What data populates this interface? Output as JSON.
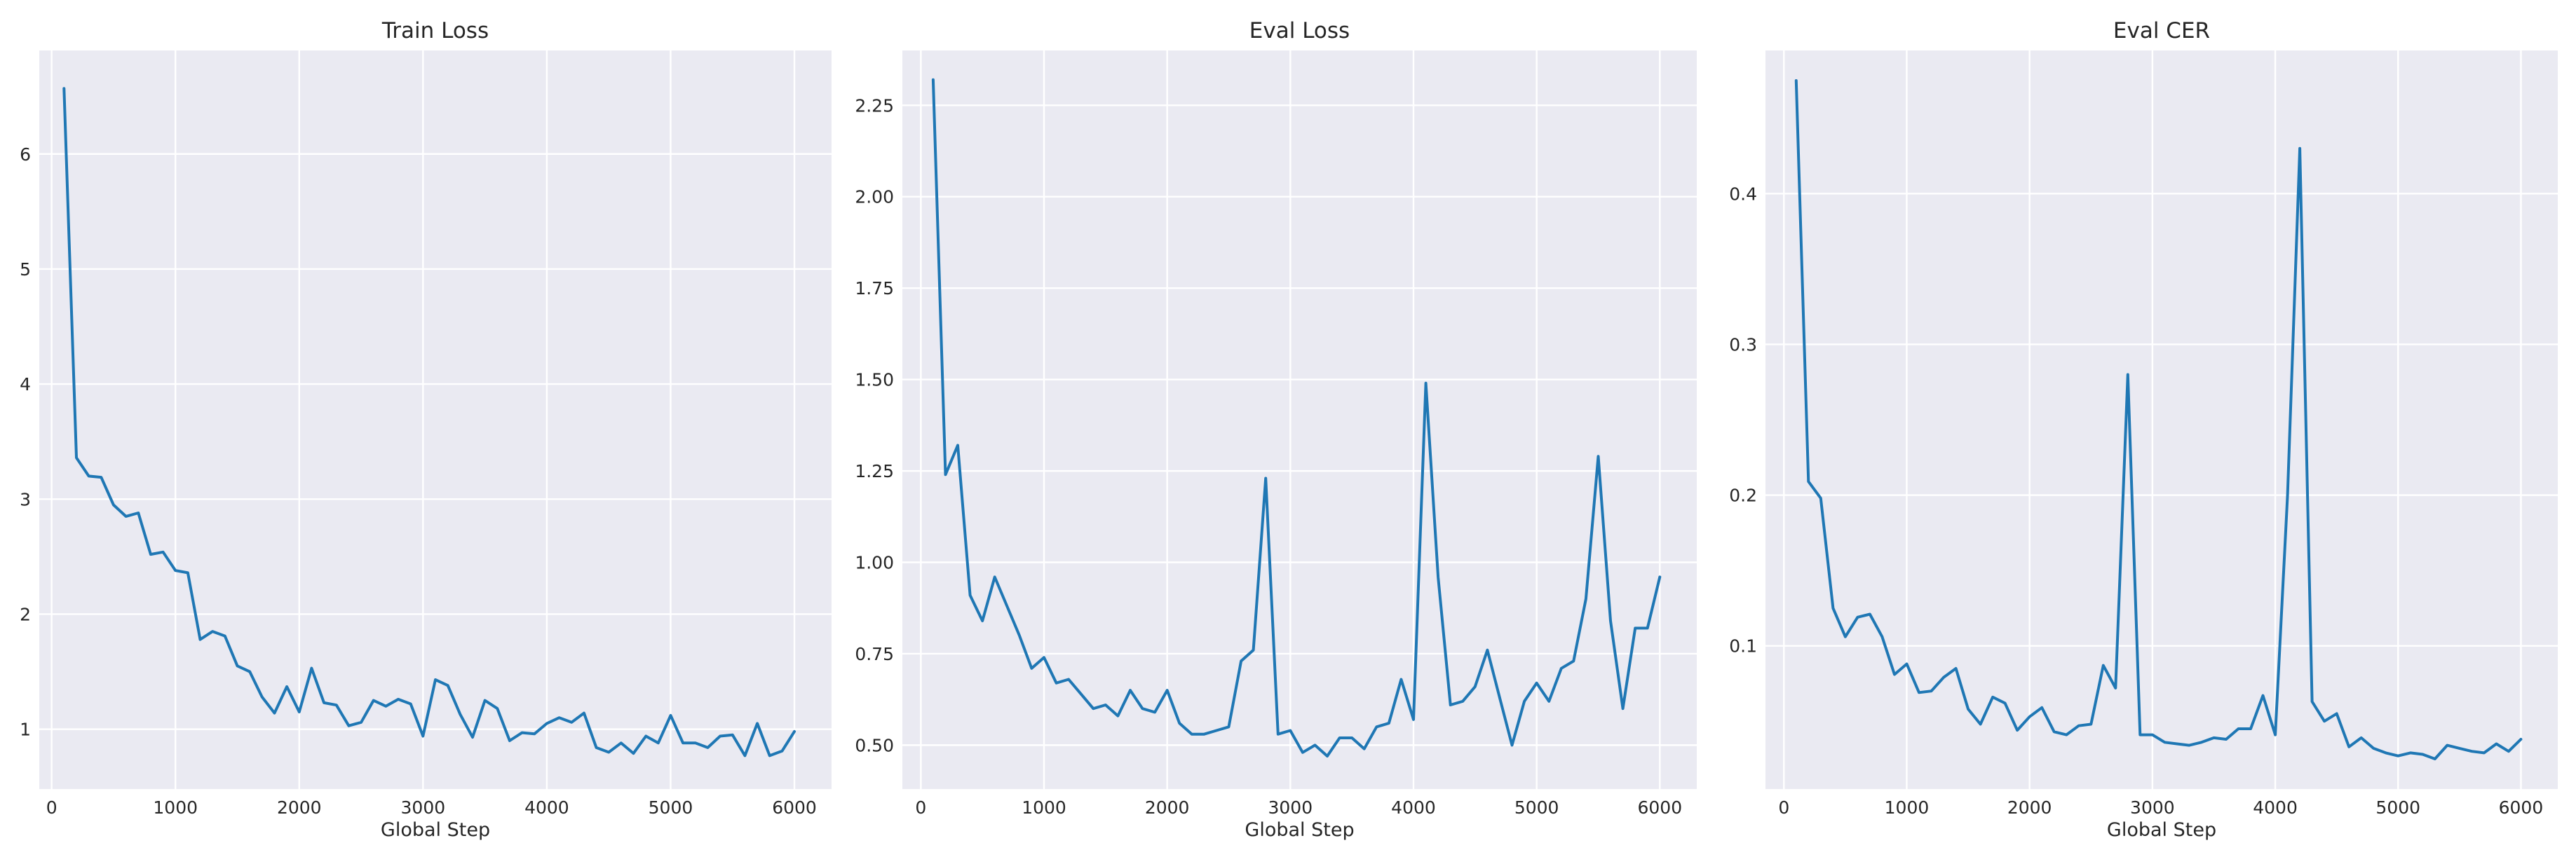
{
  "chart_data": [
    {
      "type": "line",
      "title": "Train Loss",
      "xlabel": "Global Step",
      "ylabel": "",
      "xlim": [
        -100,
        6300
      ],
      "ylim": [
        0.48,
        6.9
      ],
      "xticks": [
        0,
        1000,
        2000,
        3000,
        4000,
        5000,
        6000
      ],
      "yticks": [
        1,
        2,
        3,
        4,
        5,
        6
      ],
      "ytick_labels": [
        "1",
        "2",
        "3",
        "4",
        "5",
        "6"
      ],
      "grid": true,
      "color": "#1f77b4",
      "x": [
        100,
        200,
        300,
        400,
        500,
        600,
        700,
        800,
        900,
        1000,
        1100,
        1200,
        1300,
        1400,
        1500,
        1600,
        1700,
        1800,
        1900,
        2000,
        2100,
        2200,
        2300,
        2400,
        2500,
        2600,
        2700,
        2800,
        2900,
        3000,
        3100,
        3200,
        3300,
        3400,
        3500,
        3600,
        3700,
        3800,
        3900,
        4000,
        4100,
        4200,
        4300,
        4400,
        4500,
        4600,
        4700,
        4800,
        4900,
        5000,
        5100,
        5200,
        5300,
        5400,
        5500,
        5600,
        5700,
        5800,
        5900,
        6000
      ],
      "y": [
        6.57,
        3.36,
        3.2,
        3.19,
        2.95,
        2.85,
        2.88,
        2.52,
        2.54,
        2.38,
        2.36,
        1.78,
        1.85,
        1.81,
        1.55,
        1.5,
        1.28,
        1.14,
        1.37,
        1.15,
        1.53,
        1.23,
        1.21,
        1.03,
        1.06,
        1.25,
        1.2,
        1.26,
        1.22,
        0.94,
        1.43,
        1.38,
        1.13,
        0.93,
        1.25,
        1.18,
        0.9,
        0.97,
        0.96,
        1.05,
        1.1,
        1.06,
        1.14,
        0.84,
        0.8,
        0.88,
        0.79,
        0.94,
        0.88,
        1.12,
        0.88,
        0.88,
        0.84,
        0.94,
        0.95,
        0.77,
        1.05,
        0.77,
        0.81,
        0.98
      ]
    },
    {
      "type": "line",
      "title": "Eval Loss",
      "xlabel": "Global Step",
      "ylabel": "",
      "xlim": [
        -150,
        6300
      ],
      "ylim": [
        0.38,
        2.4
      ],
      "xticks": [
        0,
        1000,
        2000,
        3000,
        4000,
        5000,
        6000
      ],
      "yticks": [
        0.5,
        0.75,
        1.0,
        1.25,
        1.5,
        1.75,
        2.0,
        2.25
      ],
      "ytick_labels": [
        "0.50",
        "0.75",
        "1.00",
        "1.25",
        "1.50",
        "1.75",
        "2.00",
        "2.25"
      ],
      "grid": true,
      "color": "#1f77b4",
      "x": [
        100,
        200,
        300,
        400,
        500,
        600,
        700,
        800,
        900,
        1000,
        1100,
        1200,
        1300,
        1400,
        1500,
        1600,
        1700,
        1800,
        1900,
        2000,
        2100,
        2200,
        2300,
        2400,
        2500,
        2600,
        2700,
        2800,
        2900,
        3000,
        3100,
        3200,
        3300,
        3400,
        3500,
        3600,
        3700,
        3800,
        3900,
        4000,
        4100,
        4200,
        4300,
        4400,
        4500,
        4600,
        4700,
        4800,
        4900,
        5000,
        5100,
        5200,
        5300,
        5400,
        5500,
        5600,
        5700,
        5800,
        5900,
        6000
      ],
      "y": [
        2.32,
        1.24,
        1.32,
        0.91,
        0.84,
        0.96,
        0.88,
        0.8,
        0.71,
        0.74,
        0.67,
        0.68,
        0.64,
        0.6,
        0.61,
        0.58,
        0.65,
        0.6,
        0.59,
        0.65,
        0.56,
        0.53,
        0.53,
        0.54,
        0.55,
        0.73,
        0.76,
        1.23,
        0.53,
        0.54,
        0.48,
        0.5,
        0.47,
        0.52,
        0.52,
        0.49,
        0.55,
        0.56,
        0.68,
        0.57,
        1.49,
        0.96,
        0.61,
        0.62,
        0.66,
        0.76,
        0.63,
        0.5,
        0.62,
        0.67,
        0.62,
        0.71,
        0.73,
        0.9,
        1.29,
        0.84,
        0.6,
        0.82,
        0.82,
        0.96
      ]
    },
    {
      "type": "line",
      "title": "Eval CER",
      "xlabel": "Global Step",
      "ylabel": "",
      "xlim": [
        -150,
        6300
      ],
      "ylim": [
        0.005,
        0.495
      ],
      "xticks": [
        0,
        1000,
        2000,
        3000,
        4000,
        5000,
        6000
      ],
      "yticks": [
        0.1,
        0.2,
        0.3,
        0.4
      ],
      "ytick_labels": [
        "0.1",
        "0.2",
        "0.3",
        "0.4"
      ],
      "grid": true,
      "color": "#1f77b4",
      "x": [
        100,
        200,
        300,
        400,
        500,
        600,
        700,
        800,
        900,
        1000,
        1100,
        1200,
        1300,
        1400,
        1500,
        1600,
        1700,
        1800,
        1900,
        2000,
        2100,
        2200,
        2300,
        2400,
        2500,
        2600,
        2700,
        2800,
        2900,
        3000,
        3100,
        3200,
        3300,
        3400,
        3500,
        3600,
        3700,
        3800,
        3900,
        4000,
        4100,
        4200,
        4300,
        4400,
        4500,
        4600,
        4700,
        4800,
        4900,
        5000,
        5100,
        5200,
        5300,
        5400,
        5500,
        5600,
        5700,
        5800,
        5900,
        6000
      ],
      "y": [
        0.475,
        0.209,
        0.198,
        0.125,
        0.106,
        0.119,
        0.121,
        0.106,
        0.081,
        0.088,
        0.069,
        0.07,
        0.079,
        0.085,
        0.058,
        0.048,
        0.066,
        0.062,
        0.044,
        0.053,
        0.059,
        0.043,
        0.041,
        0.047,
        0.048,
        0.087,
        0.072,
        0.28,
        0.041,
        0.041,
        0.036,
        0.035,
        0.034,
        0.036,
        0.039,
        0.038,
        0.045,
        0.045,
        0.067,
        0.041,
        0.2,
        0.43,
        0.063,
        0.05,
        0.055,
        0.033,
        0.039,
        0.032,
        0.029,
        0.027,
        0.029,
        0.028,
        0.025,
        0.034,
        0.032,
        0.03,
        0.029,
        0.035,
        0.03,
        0.038
      ]
    }
  ]
}
